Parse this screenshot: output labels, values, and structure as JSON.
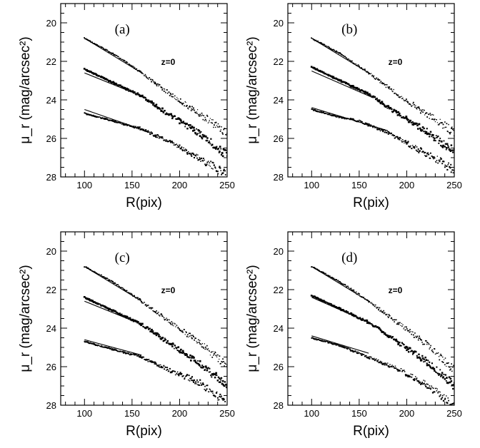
{
  "chart_data": [
    {
      "type": "scatter",
      "panel_label": "(a)",
      "annotation": "z=0",
      "xlabel": "R(pix)",
      "ylabel": "μ_r (mag/arcsec²)",
      "xlim": [
        75,
        250
      ],
      "ylim": [
        28,
        19
      ],
      "y_inverted": true,
      "x_ticks": [
        "100",
        "150",
        "200",
        "250"
      ],
      "y_ticks": [
        "20",
        "22",
        "24",
        "26",
        "28"
      ],
      "series": [
        {
          "values": [
            [
              100,
              20.8
            ],
            [
              130,
              21.6
            ],
            [
              160,
              22.6
            ],
            [
              190,
              23.7
            ],
            [
              220,
              24.7
            ],
            [
              250,
              25.7
            ]
          ]
        },
        {
          "values": [
            [
              100,
              22.4
            ],
            [
              130,
              23.1
            ],
            [
              160,
              23.8
            ],
            [
              190,
              24.8
            ],
            [
              220,
              25.7
            ],
            [
              250,
              26.9
            ]
          ]
        },
        {
          "values": [
            [
              100,
              24.7
            ],
            [
              130,
              25.1
            ],
            [
              160,
              25.5
            ],
            [
              190,
              26.2
            ],
            [
              220,
              27.0
            ],
            [
              250,
              27.9
            ]
          ]
        }
      ],
      "fits": [
        {
          "x": [
            100,
            160
          ],
          "y": [
            20.8,
            22.6
          ]
        },
        {
          "x": [
            100,
            165
          ],
          "y": [
            22.6,
            23.9
          ]
        },
        {
          "x": [
            100,
            170
          ],
          "y": [
            24.5,
            25.7
          ]
        }
      ]
    },
    {
      "type": "scatter",
      "panel_label": "(b)",
      "annotation": "z=0",
      "xlabel": "R(pix)",
      "ylabel": "μ_r (mag/arcsec²)",
      "xlim": [
        75,
        250
      ],
      "ylim": [
        28,
        19
      ],
      "y_inverted": true,
      "x_ticks": [
        "100",
        "150",
        "200",
        "250"
      ],
      "y_ticks": [
        "20",
        "22",
        "24",
        "26",
        "28"
      ],
      "series": [
        {
          "values": [
            [
              100,
              20.8
            ],
            [
              130,
              21.6
            ],
            [
              160,
              22.6
            ],
            [
              190,
              23.7
            ],
            [
              220,
              24.7
            ],
            [
              250,
              25.7
            ]
          ]
        },
        {
          "values": [
            [
              100,
              22.3
            ],
            [
              130,
              23.0
            ],
            [
              160,
              23.7
            ],
            [
              190,
              24.7
            ],
            [
              220,
              25.6
            ],
            [
              250,
              26.7
            ]
          ]
        },
        {
          "values": [
            [
              100,
              24.5
            ],
            [
              130,
              24.9
            ],
            [
              150,
              25.1
            ],
            [
              180,
              25.7
            ],
            [
              220,
              26.8
            ],
            [
              250,
              27.6
            ]
          ]
        }
      ],
      "fits": [
        {
          "x": [
            100,
            160
          ],
          "y": [
            20.8,
            22.6
          ]
        },
        {
          "x": [
            100,
            165
          ],
          "y": [
            22.5,
            23.9
          ]
        },
        {
          "x": [
            100,
            180
          ],
          "y": [
            24.4,
            25.6
          ]
        }
      ]
    },
    {
      "type": "scatter",
      "panel_label": "(c)",
      "annotation": "z=0",
      "xlabel": "R(pix)",
      "ylabel": "μ_r (mag/arcsec²)",
      "xlim": [
        75,
        250
      ],
      "ylim": [
        28,
        19
      ],
      "y_inverted": true,
      "x_ticks": [
        "100",
        "150",
        "200",
        "250"
      ],
      "y_ticks": [
        "20",
        "22",
        "24",
        "26",
        "28"
      ],
      "series": [
        {
          "values": [
            [
              100,
              20.8
            ],
            [
              130,
              21.6
            ],
            [
              160,
              22.6
            ],
            [
              190,
              23.7
            ],
            [
              220,
              24.7
            ],
            [
              250,
              26.0
            ]
          ]
        },
        {
          "values": [
            [
              100,
              22.4
            ],
            [
              130,
              23.1
            ],
            [
              160,
              23.8
            ],
            [
              190,
              24.8
            ],
            [
              220,
              25.8
            ],
            [
              250,
              27.0
            ]
          ]
        },
        {
          "values": [
            [
              100,
              24.7
            ],
            [
              130,
              25.1
            ],
            [
              160,
              25.5
            ],
            [
              190,
              26.2
            ],
            [
              220,
              26.8
            ],
            [
              250,
              27.9
            ]
          ]
        }
      ],
      "fits": [
        {
          "x": [
            100,
            160
          ],
          "y": [
            20.8,
            22.6
          ]
        },
        {
          "x": [
            100,
            160
          ],
          "y": [
            22.6,
            23.8
          ]
        },
        {
          "x": [
            100,
            160
          ],
          "y": [
            24.6,
            25.4
          ]
        }
      ]
    },
    {
      "type": "scatter",
      "panel_label": "(d)",
      "annotation": "z=0",
      "xlabel": "R(pix)",
      "ylabel": "μ_r (mag/arcsec²)",
      "xlim": [
        75,
        250
      ],
      "ylim": [
        28,
        19
      ],
      "y_inverted": true,
      "x_ticks": [
        "100",
        "150",
        "200",
        "250"
      ],
      "y_ticks": [
        "20",
        "22",
        "24",
        "26",
        "28"
      ],
      "series": [
        {
          "values": [
            [
              100,
              20.8
            ],
            [
              130,
              21.6
            ],
            [
              160,
              22.6
            ],
            [
              190,
              23.7
            ],
            [
              220,
              24.8
            ],
            [
              250,
              26.2
            ]
          ]
        },
        {
          "values": [
            [
              100,
              22.3
            ],
            [
              130,
              23.0
            ],
            [
              160,
              23.7
            ],
            [
              190,
              24.7
            ],
            [
              220,
              25.7
            ],
            [
              250,
              27.0
            ]
          ]
        },
        {
          "values": [
            [
              100,
              24.5
            ],
            [
              130,
              24.9
            ],
            [
              160,
              25.5
            ],
            [
              190,
              26.1
            ],
            [
              220,
              26.9
            ],
            [
              250,
              28.0
            ]
          ]
        }
      ],
      "fits": [
        {
          "x": [
            100,
            160
          ],
          "y": [
            20.8,
            22.6
          ]
        },
        {
          "x": [
            100,
            160
          ],
          "y": [
            22.4,
            23.7
          ]
        },
        {
          "x": [
            100,
            160
          ],
          "y": [
            24.4,
            25.3
          ]
        }
      ]
    }
  ]
}
